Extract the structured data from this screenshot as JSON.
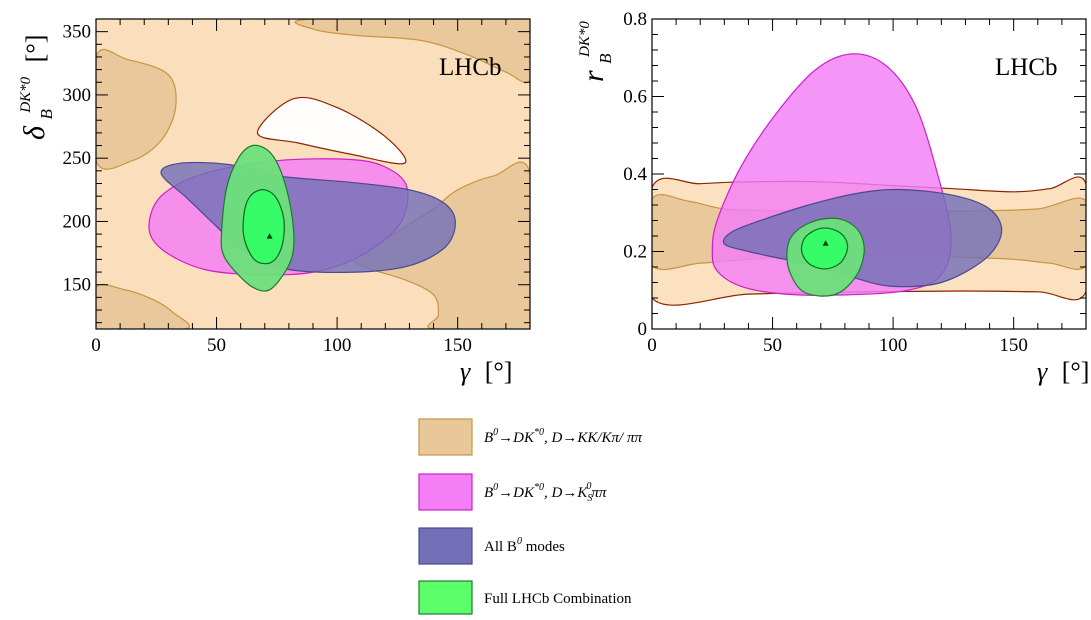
{
  "chart_data": [
    {
      "type": "contour",
      "brand_label": "LHCb",
      "xlabel": "γ [°]",
      "ylabel": "δ_B^{DK*0} [°]",
      "xlabel_main": "γ",
      "xlabel_unit": "[°]",
      "ylabel_main": "δ",
      "ylabel_sub": "B",
      "ylabel_sup": "DK*0",
      "ylabel_unit": "[°]",
      "xlim": [
        0,
        180
      ],
      "ylim": [
        115,
        360
      ],
      "x_ticks": [
        0,
        50,
        100,
        150
      ],
      "y_ticks": [
        150,
        200,
        250,
        300,
        350
      ],
      "best_fit": {
        "x": 72,
        "y": 188
      },
      "series": [
        {
          "color": "#e8c799",
          "edge": "#c89540",
          "regions": [
            [
              [
                0,
                115
              ],
              [
                0,
                148
              ],
              [
                12,
                146
              ],
              [
                24,
                138
              ],
              [
                32,
                128
              ],
              [
                37,
                115
              ]
            ],
            [
              [
                0,
                248
              ],
              [
                15,
                248
              ],
              [
                27,
                264
              ],
              [
                33,
                290
              ],
              [
                30,
                316
              ],
              [
                13,
                328
              ],
              [
                0,
                330
              ]
            ],
            [
              [
                90,
                360
              ],
              [
                90,
                352
              ],
              [
                108,
                347
              ],
              [
                135,
                343
              ],
              [
                155,
                331
              ],
              [
                170,
                318
              ],
              [
                180,
                312
              ],
              [
                180,
                360
              ]
            ],
            [
              [
                180,
                115
              ],
              [
                180,
                238
              ],
              [
                165,
                236
              ],
              [
                150,
                225
              ],
              [
                140,
                210
              ],
              [
                130,
                198
              ],
              [
                118,
                184
              ],
              [
                106,
                175
              ],
              [
                110,
                165
              ],
              [
                128,
                154
              ],
              [
                140,
                142
              ],
              [
                142,
                126
              ],
              [
                140,
                115
              ]
            ]
          ]
        },
        {
          "color": "#ffffff",
          "edge": "#8b2500",
          "regions": [
            [
              [
                67,
                270
              ],
              [
                82,
                297
              ],
              [
                100,
                290
              ],
              [
                120,
                267
              ],
              [
                128,
                246
              ],
              [
                106,
                253
              ],
              [
                84,
                262
              ]
            ]
          ]
        },
        {
          "color": "#f37ef5",
          "edge": "#cc20cc",
          "regions": [
            [
              [
                22,
                195
              ],
              [
                27,
                220
              ],
              [
                45,
                238
              ],
              [
                75,
                248
              ],
              [
                105,
                249
              ],
              [
                120,
                243
              ],
              [
                129,
                227
              ],
              [
                126,
                198
              ],
              [
                110,
                173
              ],
              [
                90,
                160
              ],
              [
                68,
                158
              ],
              [
                45,
                162
              ],
              [
                28,
                177
              ]
            ]
          ]
        },
        {
          "color": "#7470b8",
          "edge": "#4a4a8e",
          "regions": [
            [
              [
                27,
                238
              ],
              [
                38,
                218
              ],
              [
                50,
                196
              ],
              [
                62,
                175
              ],
              [
                80,
                162
              ],
              [
                108,
                160
              ],
              [
                130,
                165
              ],
              [
                145,
                180
              ],
              [
                149,
                200
              ],
              [
                144,
                215
              ],
              [
                130,
                225
              ],
              [
                105,
                231
              ],
              [
                75,
                236
              ],
              [
                55,
                245
              ],
              [
                35,
                246
              ]
            ]
          ]
        },
        {
          "color": "#6de07a",
          "edge": "#1e7a2e",
          "regions": [
            [
              [
                52,
                188
              ],
              [
                54,
                225
              ],
              [
                59,
                250
              ],
              [
                65,
                260
              ],
              [
                72,
                255
              ],
              [
                77,
                238
              ],
              [
                81,
                208
              ],
              [
                82,
                180
              ],
              [
                79,
                162
              ],
              [
                72,
                146
              ],
              [
                65,
                148
              ],
              [
                58,
                160
              ],
              [
                53,
                173
              ]
            ]
          ]
        },
        {
          "color": "#33ff66",
          "edge": "#0b6a1e",
          "regions": [
            [
              [
                61,
                193
              ],
              [
                62,
                212
              ],
              [
                65,
                222
              ],
              [
                70,
                225
              ],
              [
                75,
                218
              ],
              [
                78,
                200
              ],
              [
                77,
                180
              ],
              [
                73,
                168
              ],
              [
                67,
                168
              ],
              [
                63,
                178
              ]
            ]
          ]
        }
      ]
    },
    {
      "type": "contour",
      "brand_label": "LHCb",
      "xlabel": "γ [°]",
      "ylabel": "r_B^{DK*0}",
      "xlabel_main": "γ",
      "xlabel_unit": "[°]",
      "ylabel_main": "r",
      "ylabel_sub": "B",
      "ylabel_sup": "DK*0",
      "xlim": [
        0,
        180
      ],
      "ylim": [
        0,
        0.8
      ],
      "x_ticks": [
        0,
        50,
        100,
        150
      ],
      "y_ticks": [
        0,
        0.2,
        0.4,
        0.6,
        0.8
      ],
      "y_tick_labels": [
        "0",
        "0.2",
        "0.4",
        "0.6",
        "0.8"
      ],
      "best_fit": {
        "x": 72,
        "y": 0.22
      },
      "series": [
        {
          "color": "#fbdfbd",
          "edge": "#8b2500",
          "regions": [
            [
              [
                0,
                0.08
              ],
              [
                40,
                0.09
              ],
              [
                80,
                0.095
              ],
              [
                130,
                0.098
              ],
              [
                160,
                0.096
              ],
              [
                180,
                0.096
              ],
              [
                180,
                0.375
              ],
              [
                165,
                0.362
              ],
              [
                150,
                0.354
              ],
              [
                125,
                0.362
              ],
              [
                100,
                0.37
              ],
              [
                70,
                0.38
              ],
              [
                40,
                0.38
              ],
              [
                20,
                0.375
              ],
              [
                0,
                0.365
              ]
            ]
          ]
        },
        {
          "color": "#e8c799",
          "edge": "#c89540",
          "regions": [
            [
              [
                0,
                0.165
              ],
              [
                20,
                0.17
              ],
              [
                40,
                0.18
              ],
              [
                70,
                0.19
              ],
              [
                100,
                0.19
              ],
              [
                130,
                0.185
              ],
              [
                150,
                0.18
              ],
              [
                165,
                0.17
              ],
              [
                180,
                0.165
              ],
              [
                180,
                0.33
              ],
              [
                160,
                0.31
              ],
              [
                135,
                0.305
              ],
              [
                110,
                0.305
              ],
              [
                80,
                0.305
              ],
              [
                50,
                0.305
              ],
              [
                30,
                0.31
              ],
              [
                15,
                0.33
              ],
              [
                0,
                0.335
              ]
            ]
          ]
        },
        {
          "color": "#f37ef5",
          "edge": "#cc20cc",
          "regions": [
            [
              [
                25,
                0.2
              ],
              [
                27,
                0.28
              ],
              [
                37,
                0.42
              ],
              [
                52,
                0.56
              ],
              [
                68,
                0.67
              ],
              [
                83,
                0.71
              ],
              [
                97,
                0.68
              ],
              [
                109,
                0.58
              ],
              [
                118,
                0.41
              ],
              [
                124,
                0.24
              ],
              [
                120,
                0.14
              ],
              [
                106,
                0.1
              ],
              [
                80,
                0.088
              ],
              [
                55,
                0.09
              ],
              [
                37,
                0.11
              ],
              [
                27,
                0.15
              ]
            ]
          ]
        },
        {
          "color": "#7470b8",
          "edge": "#4a4a8e",
          "regions": [
            [
              [
                30,
                0.22
              ],
              [
                40,
                0.2
              ],
              [
                55,
                0.18
              ],
              [
                70,
                0.16
              ],
              [
                85,
                0.13
              ],
              [
                100,
                0.11
              ],
              [
                120,
                0.12
              ],
              [
                138,
                0.18
              ],
              [
                145,
                0.25
              ],
              [
                140,
                0.31
              ],
              [
                125,
                0.345
              ],
              [
                103,
                0.36
              ],
              [
                85,
                0.35
              ],
              [
                65,
                0.32
              ],
              [
                45,
                0.28
              ],
              [
                33,
                0.25
              ]
            ]
          ]
        },
        {
          "color": "#6de07a",
          "edge": "#1e7a2e",
          "regions": [
            [
              [
                56,
                0.2
              ],
              [
                58,
                0.24
              ],
              [
                64,
                0.27
              ],
              [
                72,
                0.285
              ],
              [
                80,
                0.28
              ],
              [
                86,
                0.25
              ],
              [
                88,
                0.2
              ],
              [
                85,
                0.14
              ],
              [
                78,
                0.095
              ],
              [
                70,
                0.085
              ],
              [
                62,
                0.1
              ],
              [
                57,
                0.15
              ]
            ]
          ]
        },
        {
          "color": "#33ff66",
          "edge": "#0b6a1e",
          "regions": [
            [
              [
                62,
                0.21
              ],
              [
                64,
                0.24
              ],
              [
                70,
                0.26
              ],
              [
                76,
                0.255
              ],
              [
                80,
                0.235
              ],
              [
                81,
                0.205
              ],
              [
                78,
                0.17
              ],
              [
                72,
                0.155
              ],
              [
                66,
                0.165
              ],
              [
                63,
                0.185
              ]
            ]
          ]
        }
      ]
    }
  ],
  "legend": {
    "items": [
      {
        "label": "B⁰→DK*⁰, D→KK/Kπ/ ππ",
        "base": "B",
        "base_sup": "0",
        "arrow1": "→DK",
        "arrow1_sup": "*0",
        "rest": ", D→KK/Kπ/ ππ",
        "color": "#e8c799",
        "edge": "#c89540"
      },
      {
        "label": "B⁰→DK*⁰, D→Kₛ⁰ππ",
        "base": "B",
        "base_sup": "0",
        "arrow1": "→DK",
        "arrow1_sup": "*0",
        "rest_a": ", D→K",
        "rest_sub": "S",
        "rest_sup": "0",
        "rest_b": "ππ",
        "color": "#f37ef5",
        "edge": "#cc20cc"
      },
      {
        "label": "All B⁰ modes",
        "pre": "All B",
        "pre_sup": "0",
        "post": " modes",
        "color": "#7470b8",
        "edge": "#4a4a8e"
      },
      {
        "label": "Full LHCb Combination",
        "text": "Full LHCb Combination",
        "color": "#5cff69",
        "edge": "#1e7a2e"
      }
    ]
  }
}
